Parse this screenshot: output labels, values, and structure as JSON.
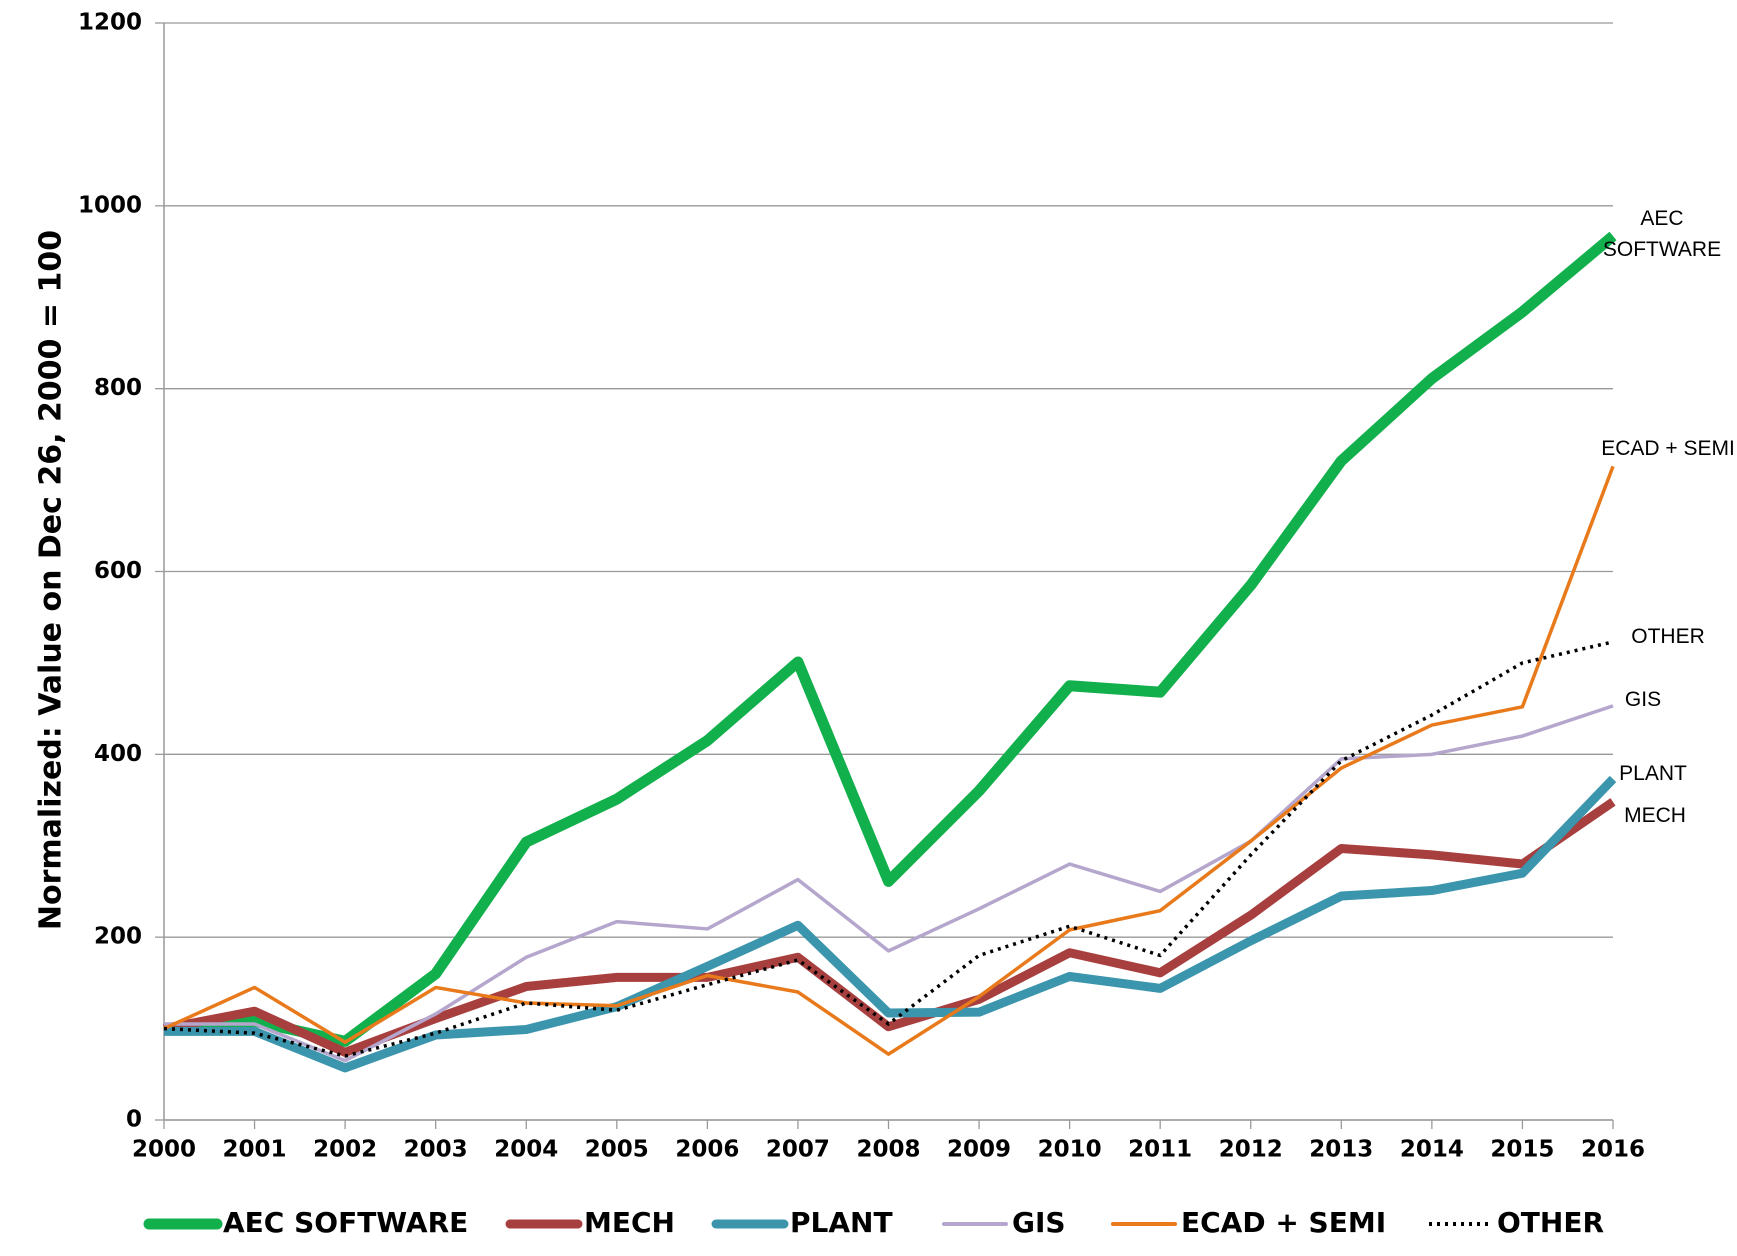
{
  "chart_data": {
    "type": "line",
    "y_label": "Normalized: Value on Dec 26, 2000 = 100",
    "x": [
      2000,
      2001,
      2002,
      2003,
      2004,
      2005,
      2006,
      2007,
      2008,
      2009,
      2010,
      2011,
      2012,
      2013,
      2014,
      2015,
      2016
    ],
    "xlim": [
      2000,
      2016
    ],
    "xticks": [
      2000,
      2001,
      2002,
      2003,
      2004,
      2005,
      2006,
      2007,
      2008,
      2009,
      2010,
      2011,
      2012,
      2013,
      2014,
      2015,
      2016
    ],
    "ylim": [
      0,
      1200
    ],
    "yticks": [
      0,
      200,
      400,
      600,
      800,
      1000,
      1200
    ],
    "grid": true,
    "legend": "bottom",
    "series": [
      {
        "name": "AEC SOFTWARE",
        "color": "#12b04c",
        "end_label": [
          "AEC",
          "SOFTWARE"
        ],
        "values": [
          100,
          108,
          86,
          160,
          304,
          351,
          415,
          501,
          261,
          360,
          475,
          468,
          585,
          721,
          811,
          884,
          967
        ]
      },
      {
        "name": "MECH",
        "color": "#a83f3f",
        "end_label": [
          "MECH"
        ],
        "values": [
          100,
          119,
          74,
          111,
          146,
          156,
          156,
          178,
          102,
          132,
          183,
          161,
          224,
          297,
          290,
          280,
          348
        ]
      },
      {
        "name": "PLANT",
        "color": "#3b95ac",
        "end_label": [
          "PLANT"
        ],
        "values": [
          97,
          97,
          57,
          93,
          99,
          124,
          168,
          213,
          117,
          118,
          157,
          144,
          196,
          245,
          251,
          270,
          373
        ]
      },
      {
        "name": "GIS",
        "color": "#b4a6cc",
        "end_label": [
          "GIS"
        ],
        "values": [
          105,
          105,
          65,
          116,
          178,
          217,
          209,
          263,
          185,
          231,
          280,
          250,
          305,
          395,
          400,
          420,
          453
        ]
      },
      {
        "name": "ECAD + SEMI",
        "color": "#e87a1c",
        "end_label": [
          "ECAD + SEMI"
        ],
        "values": [
          100,
          145,
          85,
          145,
          128,
          125,
          158,
          140,
          72,
          135,
          208,
          229,
          305,
          385,
          432,
          452,
          715
        ]
      },
      {
        "name": "OTHER",
        "color": "#000000",
        "line_style": "dotted",
        "end_label": [
          "OTHER"
        ],
        "values": [
          100,
          95,
          70,
          95,
          128,
          120,
          148,
          175,
          105,
          180,
          212,
          180,
          290,
          393,
          443,
          500,
          523
        ]
      }
    ]
  }
}
